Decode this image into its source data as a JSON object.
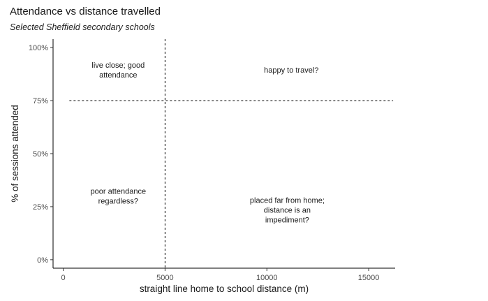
{
  "chart_data": {
    "type": "scatter",
    "title": "Attendance vs distance travelled",
    "subtitle": "Selected Sheffield secondary schools",
    "xlabel": "straight line home to school distance (m)",
    "ylabel": "% of sessions attended",
    "xlim": [
      -500,
      16300
    ],
    "ylim": [
      -0.04,
      1.04
    ],
    "x_ticks": [
      0,
      5000,
      10000,
      15000
    ],
    "x_tick_labels": [
      "0",
      "5000",
      "10000",
      "15000"
    ],
    "y_ticks": [
      0,
      0.25,
      0.5,
      0.75,
      1.0
    ],
    "y_tick_labels": [
      "0%",
      "25%",
      "50%",
      "75%",
      "100%"
    ],
    "grid": false,
    "series": [],
    "reference_lines": [
      {
        "orientation": "vertical",
        "x": 5000,
        "style": "dashed"
      },
      {
        "orientation": "horizontal",
        "y": 0.75,
        "x_from": 300,
        "x_to": 16200,
        "style": "dashed"
      }
    ],
    "annotations": [
      {
        "text": "live close; good\nattendance",
        "x": 2700,
        "y": 0.895
      },
      {
        "text": "happy to travel?",
        "x": 11200,
        "y": 0.895
      },
      {
        "text": "poor attendance\nregardless?",
        "x": 2700,
        "y": 0.3
      },
      {
        "text": "placed far from home;\ndistance is an\nimpediment?",
        "x": 11000,
        "y": 0.235
      }
    ]
  }
}
